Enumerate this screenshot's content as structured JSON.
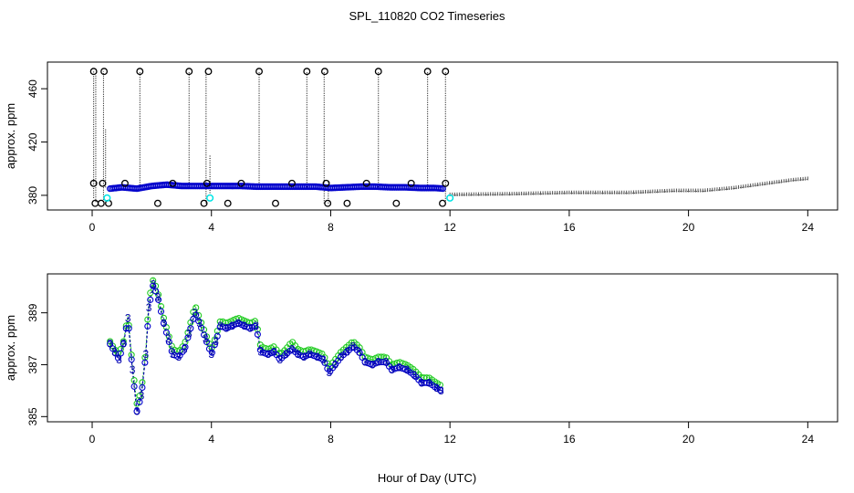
{
  "title": "SPL_110820  CO2 Timeseries",
  "xlabel": "Hour of Day (UTC)",
  "colors": {
    "black": "#000000",
    "blue": "#0000cc",
    "cyan": "#00e5e5",
    "green": "#22cc22",
    "navy": "#0000aa",
    "frame": "#000000"
  },
  "chart_data": [
    {
      "type": "scatter",
      "name": "top-panel",
      "ylabel": "approx. ppm",
      "xlim": [
        -1.5,
        25
      ],
      "ylim": [
        369,
        480
      ],
      "xticks": [
        0,
        4,
        8,
        12,
        16,
        20,
        24
      ],
      "yticks": [
        380,
        420,
        460
      ],
      "grid": false,
      "flagged_points": [
        {
          "x": 0.05,
          "y": 473
        },
        {
          "x": 0.4,
          "y": 473
        },
        {
          "x": 1.6,
          "y": 473
        },
        {
          "x": 3.25,
          "y": 473
        },
        {
          "x": 3.9,
          "y": 473
        },
        {
          "x": 5.6,
          "y": 473
        },
        {
          "x": 7.2,
          "y": 473
        },
        {
          "x": 7.8,
          "y": 473
        },
        {
          "x": 9.6,
          "y": 473
        },
        {
          "x": 11.25,
          "y": 473
        },
        {
          "x": 11.85,
          "y": 473
        },
        {
          "x": 0.05,
          "y": 389
        },
        {
          "x": 0.35,
          "y": 389
        },
        {
          "x": 1.1,
          "y": 389
        },
        {
          "x": 2.7,
          "y": 389
        },
        {
          "x": 3.85,
          "y": 389
        },
        {
          "x": 5.0,
          "y": 389
        },
        {
          "x": 6.7,
          "y": 389
        },
        {
          "x": 7.85,
          "y": 389
        },
        {
          "x": 9.2,
          "y": 389
        },
        {
          "x": 10.7,
          "y": 389
        },
        {
          "x": 11.85,
          "y": 389
        },
        {
          "x": 0.1,
          "y": 374
        },
        {
          "x": 0.3,
          "y": 374
        },
        {
          "x": 0.55,
          "y": 374
        },
        {
          "x": 2.2,
          "y": 374
        },
        {
          "x": 3.75,
          "y": 374
        },
        {
          "x": 4.55,
          "y": 374
        },
        {
          "x": 6.15,
          "y": 374
        },
        {
          "x": 7.9,
          "y": 374
        },
        {
          "x": 8.55,
          "y": 374
        },
        {
          "x": 10.2,
          "y": 374
        },
        {
          "x": 11.75,
          "y": 374
        }
      ],
      "spikes": [
        {
          "x": 0.05,
          "y0": 378,
          "y1": 473
        },
        {
          "x": 0.12,
          "y0": 375,
          "y1": 470
        },
        {
          "x": 0.38,
          "y0": 375,
          "y1": 473
        },
        {
          "x": 0.45,
          "y0": 386,
          "y1": 430
        },
        {
          "x": 1.6,
          "y0": 386,
          "y1": 473
        },
        {
          "x": 3.25,
          "y0": 386,
          "y1": 473
        },
        {
          "x": 3.82,
          "y0": 374,
          "y1": 473
        },
        {
          "x": 3.95,
          "y0": 380,
          "y1": 410
        },
        {
          "x": 5.6,
          "y0": 386,
          "y1": 473
        },
        {
          "x": 7.2,
          "y0": 386,
          "y1": 473
        },
        {
          "x": 7.78,
          "y0": 374,
          "y1": 473
        },
        {
          "x": 7.92,
          "y0": 374,
          "y1": 390
        },
        {
          "x": 9.6,
          "y0": 386,
          "y1": 473
        },
        {
          "x": 11.25,
          "y0": 386,
          "y1": 473
        },
        {
          "x": 11.85,
          "y0": 374,
          "y1": 473
        }
      ],
      "cyan_points": [
        {
          "x": 0.5,
          "y": 378
        },
        {
          "x": 3.95,
          "y": 378
        },
        {
          "x": 12.0,
          "y": 378
        }
      ],
      "blue_series": [
        [
          0.6,
          385
        ],
        [
          1.0,
          386
        ],
        [
          1.5,
          385
        ],
        [
          2.0,
          387
        ],
        [
          2.5,
          388
        ],
        [
          3.0,
          387
        ],
        [
          3.5,
          387
        ],
        [
          4.0,
          387
        ],
        [
          4.5,
          387
        ],
        [
          5.0,
          387
        ],
        [
          5.5,
          386.5
        ],
        [
          6.0,
          386.5
        ],
        [
          6.5,
          386.5
        ],
        [
          7.0,
          386.5
        ],
        [
          7.5,
          386.5
        ],
        [
          8.0,
          385.5
        ],
        [
          8.5,
          386
        ],
        [
          9.0,
          386.5
        ],
        [
          9.5,
          386.5
        ],
        [
          10.0,
          386
        ],
        [
          10.5,
          386
        ],
        [
          11.0,
          385.5
        ],
        [
          11.5,
          385.5
        ],
        [
          11.8,
          385
        ]
      ],
      "faint_series": [
        [
          12.0,
          380
        ],
        [
          14.0,
          380.5
        ],
        [
          16.0,
          381.5
        ],
        [
          18.0,
          381.5
        ],
        [
          19.5,
          383
        ],
        [
          20.5,
          383
        ],
        [
          21.5,
          385
        ],
        [
          22.5,
          388
        ],
        [
          23.5,
          391
        ],
        [
          24.0,
          392
        ]
      ]
    },
    {
      "type": "line",
      "name": "bottom-panel",
      "ylabel": "approx. ppm",
      "xlim": [
        -1.5,
        25
      ],
      "ylim": [
        384.8,
        390.5
      ],
      "xticks": [
        0,
        4,
        8,
        12,
        16,
        20,
        24
      ],
      "yticks": [
        385,
        387,
        389
      ],
      "grid": false,
      "series": [
        {
          "name": "blue",
          "marker": "3",
          "values": [
            [
              0.6,
              387.8
            ],
            [
              0.75,
              387.5
            ],
            [
              0.9,
              387.2
            ],
            [
              1.05,
              387.8
            ],
            [
              1.2,
              388.8
            ],
            [
              1.35,
              386.8
            ],
            [
              1.5,
              385.2
            ],
            [
              1.65,
              385.8
            ],
            [
              1.8,
              387.4
            ],
            [
              1.9,
              389.2
            ],
            [
              2.05,
              390.1
            ],
            [
              2.2,
              389.6
            ],
            [
              2.4,
              388.6
            ],
            [
              2.55,
              388.0
            ],
            [
              2.7,
              387.4
            ],
            [
              2.9,
              387.3
            ],
            [
              3.1,
              387.6
            ],
            [
              3.25,
              388.2
            ],
            [
              3.45,
              389.0
            ],
            [
              3.6,
              388.6
            ],
            [
              3.8,
              388.0
            ],
            [
              4.0,
              387.4
            ],
            [
              4.15,
              387.9
            ],
            [
              4.3,
              388.5
            ],
            [
              4.5,
              388.4
            ],
            [
              4.7,
              388.5
            ],
            [
              4.9,
              388.6
            ],
            [
              5.1,
              388.5
            ],
            [
              5.3,
              388.4
            ],
            [
              5.5,
              388.5
            ],
            [
              5.65,
              387.5
            ],
            [
              5.9,
              387.4
            ],
            [
              6.1,
              387.5
            ],
            [
              6.3,
              387.2
            ],
            [
              6.5,
              387.4
            ],
            [
              6.7,
              387.6
            ],
            [
              6.9,
              387.4
            ],
            [
              7.1,
              387.3
            ],
            [
              7.3,
              387.4
            ],
            [
              7.55,
              387.3
            ],
            [
              7.75,
              387.2
            ],
            [
              7.95,
              386.7
            ],
            [
              8.15,
              387.0
            ],
            [
              8.35,
              387.3
            ],
            [
              8.55,
              387.5
            ],
            [
              8.75,
              387.7
            ],
            [
              8.95,
              387.5
            ],
            [
              9.15,
              387.1
            ],
            [
              9.4,
              387.0
            ],
            [
              9.6,
              387.1
            ],
            [
              9.85,
              387.1
            ],
            [
              10.05,
              386.8
            ],
            [
              10.3,
              386.9
            ],
            [
              10.55,
              386.8
            ],
            [
              10.8,
              386.6
            ],
            [
              11.05,
              386.3
            ],
            [
              11.3,
              386.3
            ],
            [
              11.55,
              386.1
            ],
            [
              11.7,
              386.0
            ]
          ]
        },
        {
          "name": "green",
          "marker": "o",
          "values": [
            [
              0.6,
              387.9
            ],
            [
              0.75,
              387.6
            ],
            [
              0.9,
              387.4
            ],
            [
              1.05,
              387.9
            ],
            [
              1.2,
              388.9
            ],
            [
              1.35,
              387.0
            ],
            [
              1.5,
              385.5
            ],
            [
              1.65,
              386.0
            ],
            [
              1.8,
              387.6
            ],
            [
              1.9,
              389.5
            ],
            [
              2.05,
              390.3
            ],
            [
              2.2,
              389.8
            ],
            [
              2.4,
              388.8
            ],
            [
              2.55,
              388.2
            ],
            [
              2.7,
              387.6
            ],
            [
              2.9,
              387.5
            ],
            [
              3.1,
              387.8
            ],
            [
              3.25,
              388.4
            ],
            [
              3.45,
              389.3
            ],
            [
              3.6,
              388.8
            ],
            [
              3.8,
              388.2
            ],
            [
              4.0,
              387.6
            ],
            [
              4.15,
              388.1
            ],
            [
              4.3,
              388.7
            ],
            [
              4.5,
              388.6
            ],
            [
              4.7,
              388.7
            ],
            [
              4.9,
              388.8
            ],
            [
              5.1,
              388.7
            ],
            [
              5.3,
              388.6
            ],
            [
              5.5,
              388.7
            ],
            [
              5.65,
              387.7
            ],
            [
              5.9,
              387.6
            ],
            [
              6.1,
              387.7
            ],
            [
              6.3,
              387.4
            ],
            [
              6.5,
              387.6
            ],
            [
              6.7,
              387.9
            ],
            [
              6.9,
              387.6
            ],
            [
              7.1,
              387.5
            ],
            [
              7.3,
              387.6
            ],
            [
              7.55,
              387.5
            ],
            [
              7.75,
              387.4
            ],
            [
              7.95,
              386.9
            ],
            [
              8.15,
              387.2
            ],
            [
              8.35,
              387.5
            ],
            [
              8.55,
              387.7
            ],
            [
              8.75,
              387.9
            ],
            [
              8.95,
              387.7
            ],
            [
              9.15,
              387.3
            ],
            [
              9.4,
              387.2
            ],
            [
              9.6,
              387.3
            ],
            [
              9.85,
              387.3
            ],
            [
              10.05,
              387.0
            ],
            [
              10.3,
              387.1
            ],
            [
              10.55,
              387.0
            ],
            [
              10.8,
              386.8
            ],
            [
              11.05,
              386.5
            ],
            [
              11.3,
              386.5
            ],
            [
              11.55,
              386.3
            ],
            [
              11.7,
              386.2
            ]
          ]
        }
      ]
    }
  ]
}
